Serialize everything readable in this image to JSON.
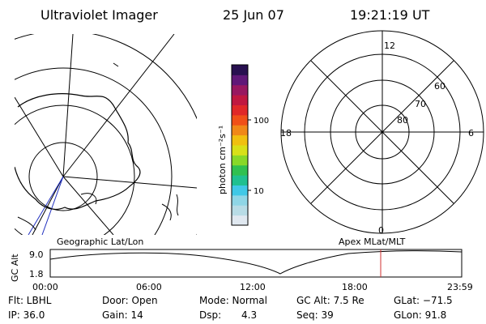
{
  "header": {
    "title": "Ultraviolet Imager",
    "date": "25 Jun 07",
    "time": "19:21:19 UT"
  },
  "colorbar": {
    "unit": "photon cm⁻²s⁻¹",
    "tick_100": "100",
    "tick_10": "10",
    "colors": [
      "#e0e8f0",
      "#b8dce6",
      "#8fd6e6",
      "#40c8e6",
      "#20c090",
      "#30c050",
      "#88d828",
      "#d8e018",
      "#f0c010",
      "#f08818",
      "#f05018",
      "#e02828",
      "#c01840",
      "#981860",
      "#601878",
      "#281050"
    ]
  },
  "geo_map": {
    "label": "Geographic Lat/Lon"
  },
  "polar_plot": {
    "label": "Apex MLat/MLT",
    "mlt_labels": [
      "12",
      "18",
      "6",
      "0"
    ],
    "mlat_labels": [
      "60",
      "70",
      "80"
    ]
  },
  "alt_plot": {
    "ylabel": "GC Alt",
    "y_ticks": [
      "9.0",
      "1.8"
    ],
    "x_ticks": [
      "00:00",
      "06:00",
      "12:00",
      "18:00",
      "23:59"
    ],
    "marker_color": "#d03030"
  },
  "info": {
    "flt": "Flt: LBHL",
    "ip": "IP: 36.0",
    "door": "Door: Open",
    "gain": "Gain: 14",
    "mode": "Mode: Normal",
    "dsp": "Dsp:",
    "dsp_val": "4.3",
    "gcalt": "GC Alt: 7.5 Re",
    "seq": "Seq: 39",
    "glat": "GLat: −71.5",
    "glon": "GLon: 91.8"
  }
}
